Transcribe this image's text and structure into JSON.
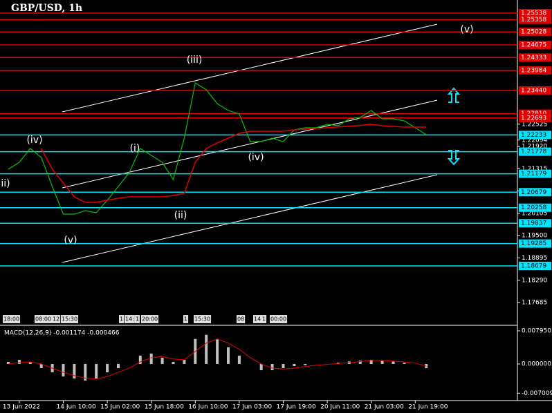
{
  "chart_data": [
    {
      "type": "line",
      "title": "GBP/USD, 1h",
      "categories": [
        null,
        "13 Jun 2022",
        null,
        null,
        null,
        "14 Jun 10:00",
        null,
        null,
        null,
        "15 Jun 02:00",
        null,
        null,
        null,
        "15 Jun 18:00",
        null,
        null,
        null,
        "16 Jun 10:00",
        null,
        null,
        null,
        "17 Jun 03:00",
        null,
        null,
        null,
        "17 Jun 19:00",
        null,
        null,
        null,
        "20 Jun 11:00",
        null,
        null,
        null,
        "21 Jun 03:00",
        null,
        null,
        null,
        "21 Jun 19:00",
        null
      ],
      "series": [
        {
          "color": "#00c000",
          "values": [
            1.21303,
            1.2149,
            1.21865,
            1.21621,
            1.20834,
            1.20084,
            1.20084,
            1.20178,
            1.20122,
            1.20459,
            1.20834,
            1.21209,
            1.21865,
            1.21677,
            1.2149,
            1.21021,
            1.22146,
            1.23645,
            1.23458,
            1.23083,
            1.22896,
            1.22802,
            1.22052,
            1.22052,
            1.22146,
            1.22052,
            1.22371,
            1.22427,
            1.22427,
            1.22521,
            1.22483,
            1.22671,
            1.22708,
            1.22896,
            1.22671,
            1.22671,
            1.22614,
            1.22427,
            1.2224
          ]
        },
        {
          "color": "#e00000",
          "values": [
            null,
            null,
            null,
            1.21865,
            1.21303,
            1.20928,
            1.20553,
            1.20403,
            1.20403,
            1.20459,
            1.20515,
            1.20553,
            1.20553,
            1.20553,
            1.20553,
            1.2059,
            1.20646,
            1.2149,
            1.21865,
            1.22015,
            1.22146,
            1.22277,
            1.22333,
            1.22333,
            1.22333,
            1.22333,
            1.22371,
            1.2239,
            1.2241,
            1.2243,
            1.2245,
            1.2247,
            1.2249,
            1.22521,
            1.22483,
            1.22465,
            1.22446,
            1.22446,
            1.22446
          ]
        }
      ],
      "ylim": [
        1.17086,
        1.25894
      ],
      "yticks": [
        {
          "value": 1.22525,
          "label": "1.22525"
        },
        {
          "value": 1.22094,
          "label": "1.22094"
        },
        {
          "value": 1.2192,
          "label": "1.21920"
        },
        {
          "value": 1.21315,
          "label": "1.21315"
        },
        {
          "value": 1.2071,
          "label": "1.20710"
        },
        {
          "value": 1.20105,
          "label": "1.20105"
        },
        {
          "value": 1.195,
          "label": "1.19500"
        },
        {
          "value": 1.18895,
          "label": "1.18895"
        },
        {
          "value": 1.1829,
          "label": "1.18290"
        },
        {
          "value": 1.17685,
          "label": "1.17685"
        }
      ],
      "levels": [
        {
          "value": 1.25538,
          "label": "1.25538",
          "color": "#e00000"
        },
        {
          "value": 1.25358,
          "label": "1.25358",
          "color": "#e00000"
        },
        {
          "value": 1.25028,
          "label": "1.25028",
          "color": "#e00000"
        },
        {
          "value": 1.24675,
          "label": "1.24675",
          "color": "#e00000"
        },
        {
          "value": 1.24333,
          "label": "1.24333",
          "color": "#e00000"
        },
        {
          "value": 1.23984,
          "label": "1.23984",
          "color": "#e00000"
        },
        {
          "value": 1.2344,
          "label": "1.23440",
          "color": "#e00000"
        },
        {
          "value": 1.2281,
          "label": "1.22810",
          "color": "#e00000"
        },
        {
          "value": 1.22693,
          "label": "1.22693",
          "color": "#e00000"
        },
        {
          "value": 1.22233,
          "label": "1.22233",
          "color": "#00e5ff"
        },
        {
          "value": 1.21778,
          "label": "1.21778",
          "color": "#00e5ff"
        },
        {
          "value": 1.21179,
          "label": "1.21179",
          "color": "#00e5ff"
        },
        {
          "value": 1.20679,
          "label": "1.20679",
          "color": "#00e5ff"
        },
        {
          "value": 1.20258,
          "label": "1.20258",
          "color": "#00e5ff"
        },
        {
          "value": 1.19837,
          "label": "1.19837",
          "color": "#00e5ff"
        },
        {
          "value": 1.19285,
          "label": "1.19285",
          "color": "#00e5ff"
        },
        {
          "value": 1.18679,
          "label": "1.18679",
          "color": "#00e5ff"
        }
      ],
      "annotations": [
        "(v)",
        "(iii)",
        "(iv)",
        "(i)",
        "(iv)",
        "ii)",
        "(ii)",
        "(v)"
      ],
      "session_labels": [
        "18:00",
        "08:00",
        "12",
        "15:30",
        "1",
        "14:",
        "1",
        "20:00",
        "1",
        "15:30",
        "08",
        "14",
        "1",
        "00:00"
      ]
    },
    {
      "type": "bar",
      "title": "MACD(12,26,9) -0.001174 -0.000466",
      "series": [
        {
          "color": "#c0c0c0",
          "values": [
            0.0005,
            0.001,
            0.0005,
            -0.001,
            -0.002,
            -0.003,
            -0.0035,
            -0.004,
            -0.0035,
            -0.002,
            -0.001,
            0.0,
            0.002,
            0.0025,
            0.0015,
            0.0005,
            0.001,
            0.006,
            0.007,
            0.006,
            0.004,
            0.002,
            0.0,
            -0.0015,
            -0.0015,
            -0.001,
            -0.0005,
            -0.0003,
            0.0,
            0.0,
            0.0003,
            0.0006,
            0.0008,
            0.001,
            0.0008,
            0.0006,
            0.0003,
            0.0,
            -0.001
          ]
        },
        {
          "color": "#e00000",
          "values": [
            0.0,
            0.0003,
            0.0005,
            0.0,
            -0.001,
            -0.002,
            -0.0028,
            -0.0034,
            -0.0036,
            -0.003,
            -0.002,
            -0.001,
            0.0005,
            0.0015,
            0.0018,
            0.0012,
            0.001,
            0.003,
            0.005,
            0.006,
            0.005,
            0.0035,
            0.0015,
            0.0,
            -0.001,
            -0.0012,
            -0.001,
            -0.0006,
            -0.0003,
            -0.0001,
            0.0001,
            0.0003,
            0.0006,
            0.0008,
            0.0008,
            0.0007,
            0.0005,
            0.0002,
            -0.0005
          ]
        }
      ],
      "ylim": [
        -0.00911,
        0.00861
      ],
      "yticks": [
        {
          "value": 0.00795,
          "label": "0.007950"
        },
        {
          "value": 0,
          "label": "0.000000"
        },
        {
          "value": -0.007009,
          "label": "-0.007009"
        }
      ]
    }
  ]
}
